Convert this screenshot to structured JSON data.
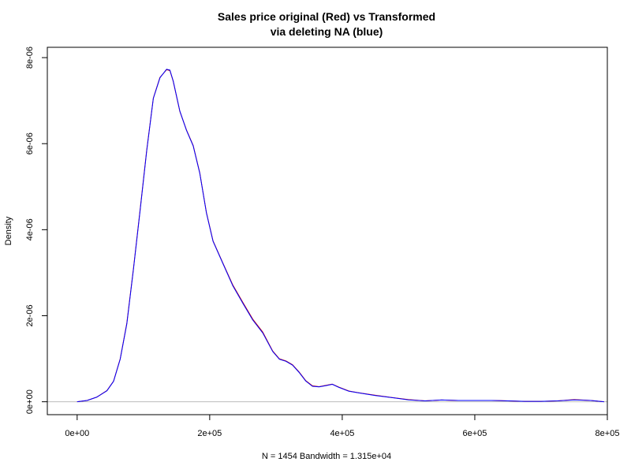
{
  "chart_data": {
    "type": "line",
    "title_line1": "Sales price original (Red) vs Transformed",
    "title_line2": "via  deleting NA (blue)",
    "xlabel": "N = 1454   Bandwidth = 1.315e+04",
    "ylabel": "Density",
    "xlim": [
      -45000,
      800000
    ],
    "ylim": [
      -300000000,
      8240000000
    ],
    "y_scale_note": "values stored as density x 1e15",
    "x_ticks": [
      0,
      200000,
      400000,
      600000,
      800000
    ],
    "x_tick_labels": [
      "0e+00",
      "2e+05",
      "4e+05",
      "6e+05",
      "8e+05"
    ],
    "y_ticks": [
      0,
      2000000000,
      4000000000,
      6000000000,
      8000000000
    ],
    "y_tick_labels": [
      "0e+00",
      "2e-06",
      "4e-06",
      "6e-06",
      "8e-06"
    ],
    "baseline": 0,
    "grid": false,
    "colors": {
      "original": "#cc0000",
      "transformed": "#0000ff",
      "baseline": "#bbbbbb",
      "axis": "#000000"
    },
    "series": [
      {
        "key": "original",
        "x": [
          0,
          15000,
          30000,
          45000,
          55000,
          65000,
          75000,
          85000,
          95000,
          105000,
          115000,
          125000,
          135000,
          140000,
          145000,
          155000,
          165000,
          175000,
          185000,
          195000,
          205000,
          220000,
          235000,
          250000,
          265000,
          280000,
          295000,
          305000,
          315000,
          325000,
          335000,
          345000,
          355000,
          365000,
          375000,
          385000,
          395000,
          410000,
          425000,
          450000,
          475000,
          500000,
          525000,
          550000,
          575000,
          600000,
          625000,
          650000,
          675000,
          700000,
          725000,
          750000,
          775000,
          795000
        ],
        "y": [
          0,
          30000000,
          110000000,
          260000000,
          480000000,
          1000000000,
          1830000000,
          3100000000,
          4460000000,
          5850000000,
          7060000000,
          7540000000,
          7720000000,
          7700000000,
          7450000000,
          6750000000,
          6320000000,
          5960000000,
          5320000000,
          4400000000,
          3740000000,
          3220000000,
          2710000000,
          2310000000,
          1920000000,
          1620000000,
          1180000000,
          1000000000,
          950000000,
          860000000,
          690000000,
          490000000,
          370000000,
          350000000,
          380000000,
          410000000,
          340000000,
          250000000,
          210000000,
          150000000,
          100000000,
          50000000,
          20000000,
          40000000,
          30000000,
          30000000,
          30000000,
          20000000,
          10000000,
          10000000,
          20000000,
          50000000,
          30000000,
          0
        ]
      },
      {
        "key": "transformed",
        "x": [
          0,
          15000,
          30000,
          45000,
          55000,
          65000,
          75000,
          85000,
          95000,
          105000,
          115000,
          125000,
          135000,
          140000,
          145000,
          155000,
          165000,
          175000,
          185000,
          195000,
          205000,
          220000,
          235000,
          250000,
          265000,
          280000,
          295000,
          305000,
          315000,
          325000,
          335000,
          345000,
          355000,
          365000,
          375000,
          385000,
          395000,
          410000,
          425000,
          450000,
          475000,
          500000,
          525000,
          550000,
          575000,
          600000,
          625000,
          650000,
          675000,
          700000,
          725000,
          750000,
          775000,
          795000
        ],
        "y": [
          0,
          30000000,
          110000000,
          255000000,
          475000000,
          990000000,
          1810000000,
          3080000000,
          4440000000,
          5830000000,
          7050000000,
          7530000000,
          7730000000,
          7710000000,
          7460000000,
          6760000000,
          6310000000,
          5950000000,
          5310000000,
          4390000000,
          3730000000,
          3210000000,
          2690000000,
          2290000000,
          1900000000,
          1600000000,
          1170000000,
          990000000,
          940000000,
          850000000,
          680000000,
          480000000,
          360000000,
          345000000,
          375000000,
          405000000,
          335000000,
          245000000,
          205000000,
          145000000,
          95000000,
          45000000,
          20000000,
          40000000,
          30000000,
          30000000,
          30000000,
          20000000,
          10000000,
          10000000,
          20000000,
          45000000,
          30000000,
          0
        ]
      }
    ]
  }
}
